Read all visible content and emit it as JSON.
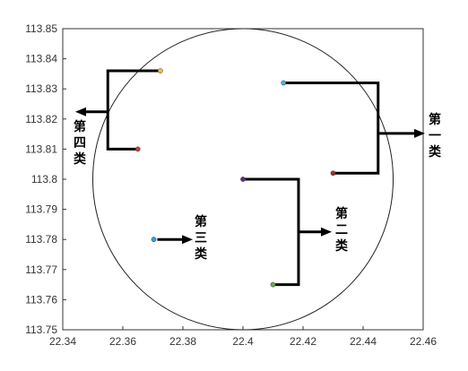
{
  "chart_data": {
    "type": "scatter",
    "title": "",
    "xlabel": "",
    "ylabel": "",
    "xlim": [
      22.34,
      22.46
    ],
    "ylim": [
      113.75,
      113.85
    ],
    "grid": false,
    "x_ticks": [
      "22.34",
      "22.36",
      "22.38",
      "22.4",
      "22.42",
      "22.44",
      "22.46"
    ],
    "y_ticks": [
      "113.75",
      "113.76",
      "113.77",
      "113.78",
      "113.79",
      "113.8",
      "113.81",
      "113.82",
      "113.83",
      "113.84",
      "113.85"
    ],
    "points": [
      {
        "x": 22.3725,
        "y": 113.836,
        "color": "#f0c030"
      },
      {
        "x": 22.365,
        "y": 113.81,
        "color": "#c04040"
      },
      {
        "x": 22.3703,
        "y": 113.78,
        "color": "#3aa0d0"
      },
      {
        "x": 22.4,
        "y": 113.8,
        "color": "#6a2a8a"
      },
      {
        "x": 22.41,
        "y": 113.765,
        "color": "#6ab040"
      },
      {
        "x": 22.4135,
        "y": 113.832,
        "color": "#50b0e0"
      },
      {
        "x": 22.43,
        "y": 113.802,
        "color": "#a03030"
      }
    ],
    "circle": {
      "cx": 22.4,
      "cy": 113.8,
      "r": 0.05
    },
    "clusters": [
      {
        "label": "第一类"
      },
      {
        "label": "第二类"
      },
      {
        "label": "第三类"
      },
      {
        "label": "第四类"
      }
    ]
  }
}
